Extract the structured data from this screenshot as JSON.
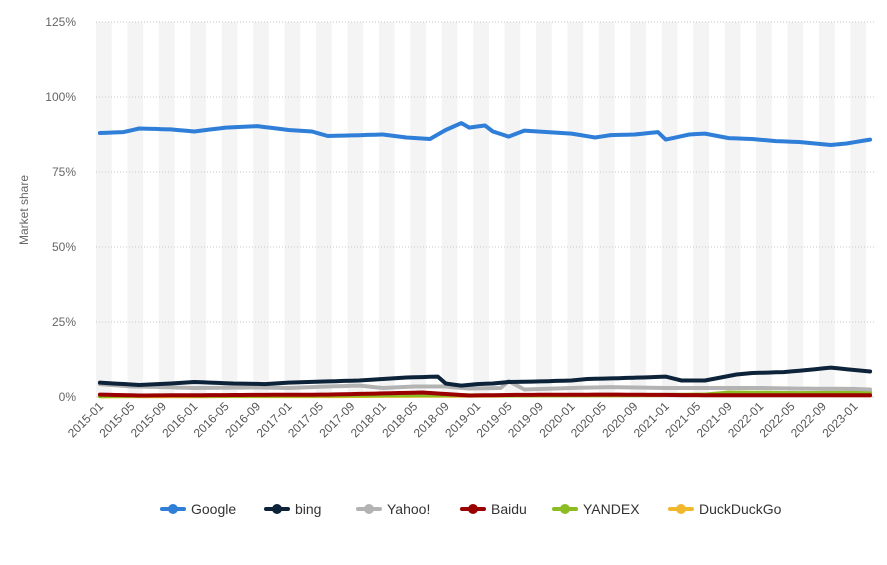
{
  "chart_data": {
    "type": "line",
    "title": "",
    "xlabel": "",
    "ylabel": "Market share",
    "ylim": [
      0,
      125
    ],
    "y_ticks": [
      "0%",
      "25%",
      "50%",
      "75%",
      "100%",
      "125%"
    ],
    "y_tick_values": [
      0,
      25,
      50,
      75,
      100,
      125
    ],
    "x_start": "2015-01",
    "x_end": "2023-03",
    "x_tick_labels": [
      "2015-01",
      "2015-05",
      "2015-09",
      "2016-01",
      "2016-05",
      "2016-09",
      "2017-01",
      "2017-05",
      "2017-09",
      "2018-01",
      "2018-05",
      "2018-09",
      "2019-01",
      "2019-05",
      "2019-09",
      "2020-01",
      "2020-05",
      "2020-09",
      "2021-01",
      "2021-05",
      "2021-09",
      "2022-01",
      "2022-05",
      "2022-09",
      "2023-01"
    ],
    "grid": true,
    "legend_position": "bottom",
    "series": [
      {
        "name": "Google",
        "color": "#2f7ed8",
        "keypoints": [
          [
            "2015-01",
            88
          ],
          [
            "2015-04",
            88.3
          ],
          [
            "2015-06",
            89.5
          ],
          [
            "2015-10",
            89.2
          ],
          [
            "2016-01",
            88.5
          ],
          [
            "2016-05",
            89.8
          ],
          [
            "2016-09",
            90.3
          ],
          [
            "2017-01",
            89
          ],
          [
            "2017-04",
            88.5
          ],
          [
            "2017-06",
            87
          ],
          [
            "2017-09",
            87.2
          ],
          [
            "2018-01",
            87.5
          ],
          [
            "2018-04",
            86.5
          ],
          [
            "2018-07",
            86
          ],
          [
            "2018-09",
            89
          ],
          [
            "2018-11",
            91.3
          ],
          [
            "2018-12",
            89.8
          ],
          [
            "2019-02",
            90.5
          ],
          [
            "2019-03",
            88.5
          ],
          [
            "2019-05",
            86.8
          ],
          [
            "2019-07",
            88.8
          ],
          [
            "2019-10",
            88.3
          ],
          [
            "2020-01",
            87.8
          ],
          [
            "2020-04",
            86.5
          ],
          [
            "2020-06",
            87.3
          ],
          [
            "2020-09",
            87.5
          ],
          [
            "2020-12",
            88.3
          ],
          [
            "2021-01",
            85.8
          ],
          [
            "2021-04",
            87.5
          ],
          [
            "2021-06",
            87.8
          ],
          [
            "2021-09",
            86.3
          ],
          [
            "2021-12",
            86
          ],
          [
            "2022-03",
            85.3
          ],
          [
            "2022-06",
            85
          ],
          [
            "2022-08",
            84.5
          ],
          [
            "2022-10",
            84
          ],
          [
            "2022-12",
            84.5
          ],
          [
            "2023-03",
            85.8
          ]
        ]
      },
      {
        "name": "bing",
        "color": "#0d233a",
        "keypoints": [
          [
            "2015-01",
            4.8
          ],
          [
            "2015-06",
            4
          ],
          [
            "2015-10",
            4.5
          ],
          [
            "2016-01",
            5
          ],
          [
            "2016-06",
            4.5
          ],
          [
            "2016-10",
            4.3
          ],
          [
            "2017-01",
            4.8
          ],
          [
            "2017-06",
            5.2
          ],
          [
            "2017-10",
            5.5
          ],
          [
            "2018-01",
            6
          ],
          [
            "2018-04",
            6.5
          ],
          [
            "2018-08",
            6.8
          ],
          [
            "2018-09",
            4.5
          ],
          [
            "2018-11",
            3.8
          ],
          [
            "2019-01",
            4.3
          ],
          [
            "2019-03",
            4.5
          ],
          [
            "2019-05",
            5
          ],
          [
            "2019-09",
            5.2
          ],
          [
            "2020-01",
            5.5
          ],
          [
            "2020-03",
            6
          ],
          [
            "2020-06",
            6.2
          ],
          [
            "2020-10",
            6.5
          ],
          [
            "2021-01",
            6.8
          ],
          [
            "2021-03",
            5.5
          ],
          [
            "2021-06",
            5.5
          ],
          [
            "2021-08",
            6.5
          ],
          [
            "2021-10",
            7.5
          ],
          [
            "2021-12",
            8
          ],
          [
            "2022-04",
            8.3
          ],
          [
            "2022-07",
            9
          ],
          [
            "2022-10",
            9.8
          ],
          [
            "2023-01",
            9
          ],
          [
            "2023-03",
            8.5
          ]
        ]
      },
      {
        "name": "Yahoo!",
        "color": "#b3b3b3",
        "keypoints": [
          [
            "2015-01",
            4.3
          ],
          [
            "2015-05",
            3.5
          ],
          [
            "2015-09",
            3.3
          ],
          [
            "2016-01",
            3
          ],
          [
            "2016-09",
            3.2
          ],
          [
            "2017-01",
            3
          ],
          [
            "2017-06",
            3.5
          ],
          [
            "2017-10",
            3.8
          ],
          [
            "2018-01",
            3
          ],
          [
            "2018-05",
            3.5
          ],
          [
            "2018-09",
            3.5
          ],
          [
            "2018-12",
            2.8
          ],
          [
            "2019-04",
            3
          ],
          [
            "2019-05",
            5.3
          ],
          [
            "2019-07",
            2.5
          ],
          [
            "2020-01",
            3
          ],
          [
            "2020-06",
            3.3
          ],
          [
            "2021-01",
            3
          ],
          [
            "2021-06",
            3
          ],
          [
            "2022-01",
            3
          ],
          [
            "2022-06",
            2.8
          ],
          [
            "2023-01",
            2.7
          ],
          [
            "2023-03",
            2.5
          ]
        ]
      },
      {
        "name": "Baidu",
        "color": "#9a0000",
        "keypoints": [
          [
            "2015-01",
            0.8
          ],
          [
            "2015-06",
            0.5
          ],
          [
            "2016-01",
            0.6
          ],
          [
            "2016-09",
            0.7
          ],
          [
            "2017-06",
            0.8
          ],
          [
            "2018-01",
            1.2
          ],
          [
            "2018-06",
            1.5
          ],
          [
            "2018-12",
            0.5
          ],
          [
            "2019-06",
            0.7
          ],
          [
            "2020-06",
            0.8
          ],
          [
            "2021-06",
            0.6
          ],
          [
            "2022-06",
            0.6
          ],
          [
            "2023-03",
            0.6
          ]
        ]
      },
      {
        "name": "YANDEX",
        "color": "#8bbc21",
        "keypoints": [
          [
            "2015-01",
            0.3
          ],
          [
            "2015-09",
            0.5
          ],
          [
            "2016-06",
            0.4
          ],
          [
            "2017-06",
            0.5
          ],
          [
            "2018-06",
            0.6
          ],
          [
            "2019-06",
            0.5
          ],
          [
            "2020-06",
            0.6
          ],
          [
            "2021-06",
            0.8
          ],
          [
            "2021-09",
            1.5
          ],
          [
            "2022-06",
            1.3
          ],
          [
            "2023-03",
            1.5
          ]
        ]
      },
      {
        "name": "DuckDuckGo",
        "color": "#f2b82d",
        "keypoints": [
          [
            "2015-01",
            0.2
          ],
          [
            "2016-06",
            0.3
          ],
          [
            "2017-06",
            0.3
          ],
          [
            "2018-06",
            0.4
          ],
          [
            "2019-06",
            0.5
          ],
          [
            "2020-06",
            0.6
          ],
          [
            "2021-06",
            0.7
          ],
          [
            "2022-06",
            0.7
          ],
          [
            "2023-03",
            0.6
          ]
        ]
      }
    ]
  }
}
